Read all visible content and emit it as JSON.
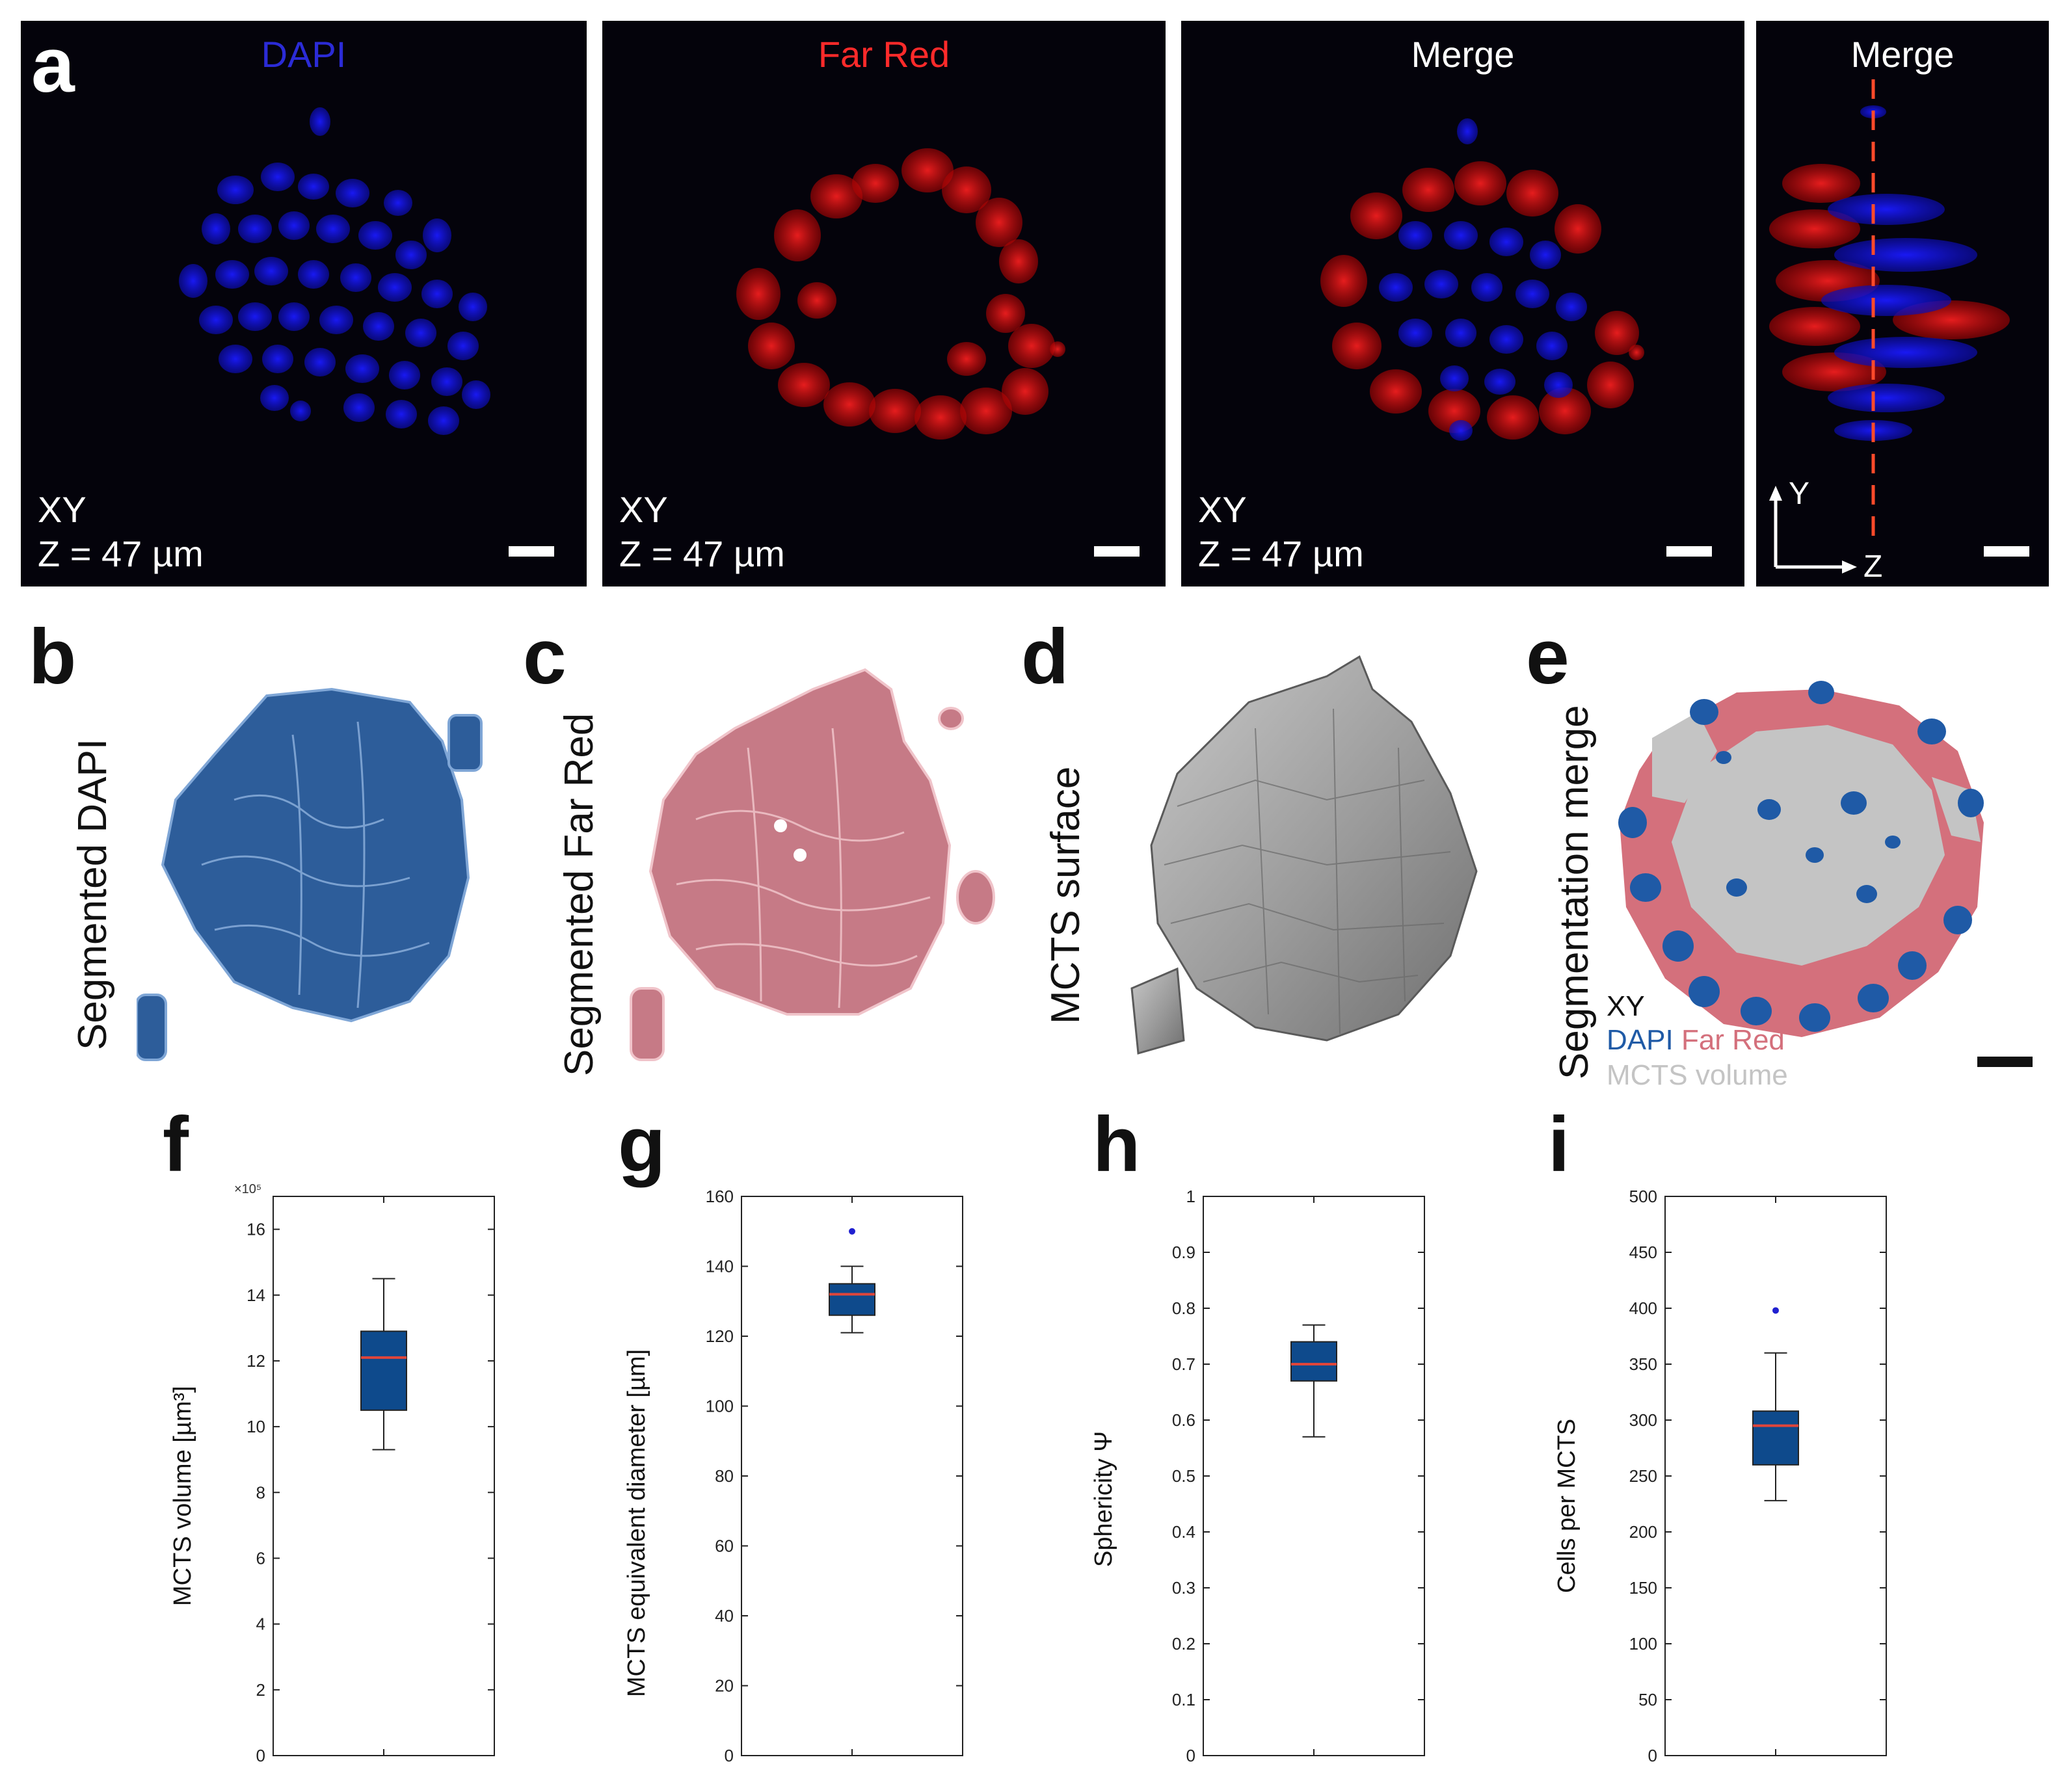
{
  "panel_a": {
    "letter": "a",
    "images": [
      {
        "title": "DAPI",
        "title_color": "#2b2bd6",
        "orientation": "XY",
        "depth": "Z = 47 µm"
      },
      {
        "title": "Far Red",
        "title_color": "#ff2a2a",
        "orientation": "XY",
        "depth": "Z = 47 µm"
      },
      {
        "title": "Merge",
        "title_color": "#ffffff",
        "orientation": "XY",
        "depth": "Z = 47 µm"
      },
      {
        "title": "Merge",
        "title_color": "#ffffff",
        "axis_y": "Y",
        "axis_z": "Z"
      }
    ]
  },
  "panel_b": {
    "letter": "b",
    "label": "Segmented DAPI",
    "color": "#2d5d9a"
  },
  "panel_c": {
    "letter": "c",
    "label": "Segmented Far Red",
    "color": "#c67a86"
  },
  "panel_d": {
    "letter": "d",
    "label": "MCTS surface",
    "color": "#9a9a9a"
  },
  "panel_e": {
    "letter": "e",
    "label": "Segmentation merge",
    "legend_xy": "XY",
    "legend_dapi": "DAPI",
    "legend_farred": "Far Red",
    "legend_volume": "MCTS volume",
    "colors": {
      "dapi": "#1f5aa6",
      "farred": "#d4707c",
      "volume": "#c4c4c4"
    }
  },
  "chart_data": [
    {
      "panel": "f",
      "type": "box",
      "ylabel": "MCTS volume [µm³]",
      "multiplier": "×10⁵",
      "ylim": [
        0,
        17
      ],
      "yticks": [
        0,
        2,
        4,
        6,
        8,
        10,
        12,
        14,
        16
      ],
      "box": {
        "whisker_low": 9.3,
        "q1": 10.5,
        "median": 12.1,
        "q3": 12.9,
        "whisker_high": 14.5
      },
      "outliers": []
    },
    {
      "panel": "g",
      "type": "box",
      "ylabel": "MCTS equivalent diameter [µm]",
      "ylim": [
        0,
        160
      ],
      "yticks": [
        0,
        20,
        40,
        60,
        80,
        100,
        120,
        140,
        160
      ],
      "box": {
        "whisker_low": 121,
        "q1": 126,
        "median": 132,
        "q3": 135,
        "whisker_high": 140
      },
      "outliers": [
        150
      ]
    },
    {
      "panel": "h",
      "type": "box",
      "ylabel": "Sphericity Ψ",
      "ylim": [
        0,
        1
      ],
      "yticks": [
        0,
        0.1,
        0.2,
        0.3,
        0.4,
        0.5,
        0.6,
        0.7,
        0.8,
        0.9,
        1
      ],
      "box": {
        "whisker_low": 0.57,
        "q1": 0.67,
        "median": 0.7,
        "q3": 0.74,
        "whisker_high": 0.77
      },
      "outliers": []
    },
    {
      "panel": "i",
      "type": "box",
      "ylabel": "Cells per MCTS",
      "ylim": [
        0,
        500
      ],
      "yticks": [
        0,
        50,
        100,
        150,
        200,
        250,
        300,
        350,
        400,
        450,
        500
      ],
      "box": {
        "whisker_low": 228,
        "q1": 260,
        "median": 295,
        "q3": 308,
        "whisker_high": 360
      },
      "outliers": [
        398
      ]
    }
  ],
  "colors": {
    "box_fill": "#0e4a8c",
    "median": "#e0453a",
    "outlier": "#2020d0"
  }
}
